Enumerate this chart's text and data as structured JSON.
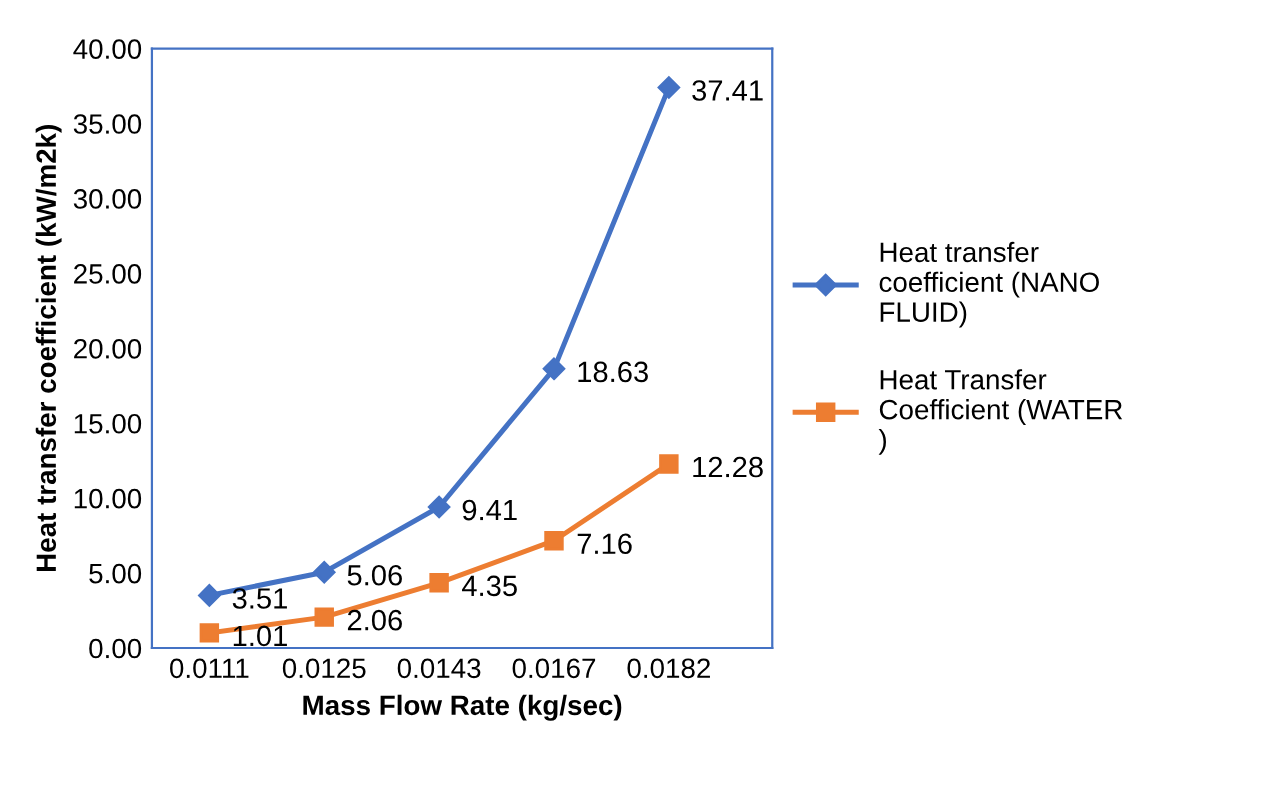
{
  "chart_data": {
    "type": "line",
    "xlabel": "Mass Flow Rate (kg/sec)",
    "ylabel": "Heat transfer coefficient (kW/m2k)",
    "categories": [
      "0.0111",
      "0.0125",
      "0.0143",
      "0.0167",
      "0.0182"
    ],
    "series": [
      {
        "name": "Heat transfer coefficient (NANO FLUID)",
        "color": "#4472c4",
        "marker": "diamond",
        "values": [
          3.51,
          5.06,
          9.41,
          18.63,
          37.41
        ]
      },
      {
        "name": "Heat Transfer Coefficient (WATER )",
        "color": "#ed7d31",
        "marker": "square",
        "values": [
          1.01,
          2.06,
          4.35,
          7.16,
          12.28
        ]
      }
    ],
    "ylim": [
      0,
      40
    ],
    "yticks": [
      {
        "value": 0,
        "label": "0.00"
      },
      {
        "value": 5,
        "label": "5.00"
      },
      {
        "value": 10,
        "label": "10.00"
      },
      {
        "value": 15,
        "label": "15.00"
      },
      {
        "value": 20,
        "label": "20.00"
      },
      {
        "value": 25,
        "label": "25.00"
      },
      {
        "value": 30,
        "label": "30.00"
      },
      {
        "value": 35,
        "label": "35.00"
      },
      {
        "value": 40,
        "label": "40.00"
      }
    ],
    "data_labels": true,
    "legend": "right",
    "grid": false,
    "line_style": "solid"
  }
}
